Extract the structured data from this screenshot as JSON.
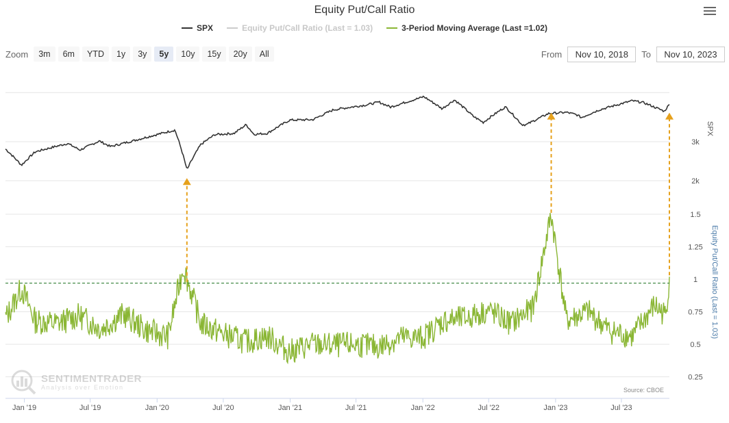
{
  "title": "Equity Put/Call Ratio",
  "legend": [
    {
      "name": "SPX",
      "color": "#333333",
      "hidden": false
    },
    {
      "name": "Equity Put/Call Ratio (Last = 1.03)",
      "color": "#cccccc",
      "hidden": true
    },
    {
      "name": "3-Period Moving Average (Last =1.02)",
      "color": "#8ab634",
      "hidden": false
    }
  ],
  "zoom": {
    "label": "Zoom",
    "buttons": [
      "3m",
      "6m",
      "YTD",
      "1y",
      "3y",
      "5y",
      "10y",
      "15y",
      "20y",
      "All"
    ],
    "active": "5y"
  },
  "range": {
    "from_label": "From",
    "from_value": "Nov 10, 2018",
    "to_label": "To",
    "to_value": "Nov 10, 2023"
  },
  "source": "Source: CBOE",
  "watermark": {
    "name": "SENTIMENTRADER",
    "tagline": "Analysis over Emotion"
  },
  "icons": {
    "menu": "hamburger-menu-icon",
    "logo": "sentimentrader-logo-icon"
  },
  "chart_data": {
    "type": "line",
    "title": "Equity Put/Call Ratio",
    "x_tick_labels": [
      "Jan '19",
      "Jul '19",
      "Jan '20",
      "Jul '20",
      "Jan '21",
      "Jul '21",
      "Jan '22",
      "Jul '22",
      "Jan '23",
      "Jul '23"
    ],
    "x_tick_dates": [
      "2019-01-01",
      "2019-07-01",
      "2020-01-01",
      "2020-07-01",
      "2021-01-01",
      "2021-07-01",
      "2022-01-01",
      "2022-07-01",
      "2023-01-01",
      "2023-07-01"
    ],
    "xlim": [
      "2018-11-10",
      "2023-11-10"
    ],
    "upper_axis": {
      "label": "SPX",
      "scale": "log",
      "ticks": [
        2000,
        3000
      ],
      "tick_labels": [
        "2k",
        "3k"
      ],
      "ylim": [
        2000,
        5000
      ]
    },
    "lower_axis": {
      "label": "Equity Put/Call Ratio (Last = 1.03)",
      "ticks": [
        0.25,
        0.5,
        0.75,
        1,
        1.25,
        1.5
      ],
      "tick_labels": [
        "0.25",
        "0.5",
        "0.75",
        "1",
        "1.25",
        "1.5"
      ],
      "ylim": [
        0.25,
        1.5
      ]
    },
    "series": [
      {
        "name": "SPX",
        "axis": "upper",
        "color": "#333333",
        "x": [
          "2018-11-10",
          "2018-12-24",
          "2019-01-31",
          "2019-04-30",
          "2019-06-03",
          "2019-07-26",
          "2019-08-26",
          "2019-10-31",
          "2019-12-31",
          "2020-02-19",
          "2020-03-23",
          "2020-04-30",
          "2020-06-08",
          "2020-07-31",
          "2020-09-02",
          "2020-09-23",
          "2020-10-30",
          "2020-12-31",
          "2021-03-04",
          "2021-04-30",
          "2021-07-31",
          "2021-09-02",
          "2021-10-04",
          "2021-12-31",
          "2022-01-03",
          "2022-02-23",
          "2022-03-29",
          "2022-05-20",
          "2022-06-16",
          "2022-08-16",
          "2022-09-30",
          "2022-10-12",
          "2022-12-13",
          "2023-01-31",
          "2023-02-28",
          "2023-03-13",
          "2023-04-30",
          "2023-06-30",
          "2023-07-31",
          "2023-08-31",
          "2023-10-27",
          "2023-11-10"
        ],
        "values": [
          2780,
          2350,
          2700,
          2945,
          2750,
          3020,
          2850,
          3040,
          3230,
          3386,
          2237,
          2910,
          3230,
          3270,
          3580,
          3240,
          3270,
          3756,
          3770,
          4180,
          4400,
          4530,
          4300,
          4766,
          4796,
          4225,
          4630,
          3900,
          3667,
          4305,
          3585,
          3577,
          4020,
          4070,
          3970,
          3855,
          4170,
          4450,
          4590,
          4500,
          4117,
          4415
        ]
      },
      {
        "name": "Equity Put/Call Ratio (Last = 1.03)",
        "axis": "lower",
        "color": "#cccccc",
        "hidden": true,
        "x": [],
        "values": []
      },
      {
        "name": "3-Period Moving Average (Last =1.02)",
        "axis": "lower",
        "color": "#8ab634",
        "x": [
          "2018-11-10",
          "2018-12-24",
          "2019-01-31",
          "2019-03-31",
          "2019-05-31",
          "2019-07-31",
          "2019-09-30",
          "2019-11-30",
          "2020-01-31",
          "2020-03-13",
          "2020-04-30",
          "2020-06-30",
          "2020-08-31",
          "2020-10-31",
          "2020-12-31",
          "2021-02-28",
          "2021-04-30",
          "2021-06-30",
          "2021-08-31",
          "2021-10-31",
          "2021-12-31",
          "2022-02-28",
          "2022-04-30",
          "2022-06-30",
          "2022-08-31",
          "2022-10-31",
          "2022-12-20",
          "2023-01-31",
          "2023-03-31",
          "2023-05-31",
          "2023-07-31",
          "2023-09-30",
          "2023-10-31",
          "2023-11-10"
        ],
        "values": [
          0.7,
          0.93,
          0.68,
          0.66,
          0.72,
          0.62,
          0.73,
          0.61,
          0.56,
          1.1,
          0.66,
          0.58,
          0.52,
          0.56,
          0.44,
          0.5,
          0.49,
          0.5,
          0.48,
          0.55,
          0.55,
          0.68,
          0.7,
          0.76,
          0.66,
          0.78,
          1.5,
          0.68,
          0.75,
          0.6,
          0.56,
          0.8,
          0.72,
          1.02
        ]
      }
    ],
    "annotations": [
      {
        "type": "arrow",
        "date": "2020-03-23",
        "label": ""
      },
      {
        "type": "arrow",
        "date": "2022-12-20",
        "label": ""
      },
      {
        "type": "arrow",
        "date": "2023-11-10",
        "label": ""
      }
    ],
    "threshold": {
      "value": 0.97,
      "style": "dashed",
      "color": "#2e7d32"
    },
    "grid": true,
    "legend_position": "top-center"
  }
}
